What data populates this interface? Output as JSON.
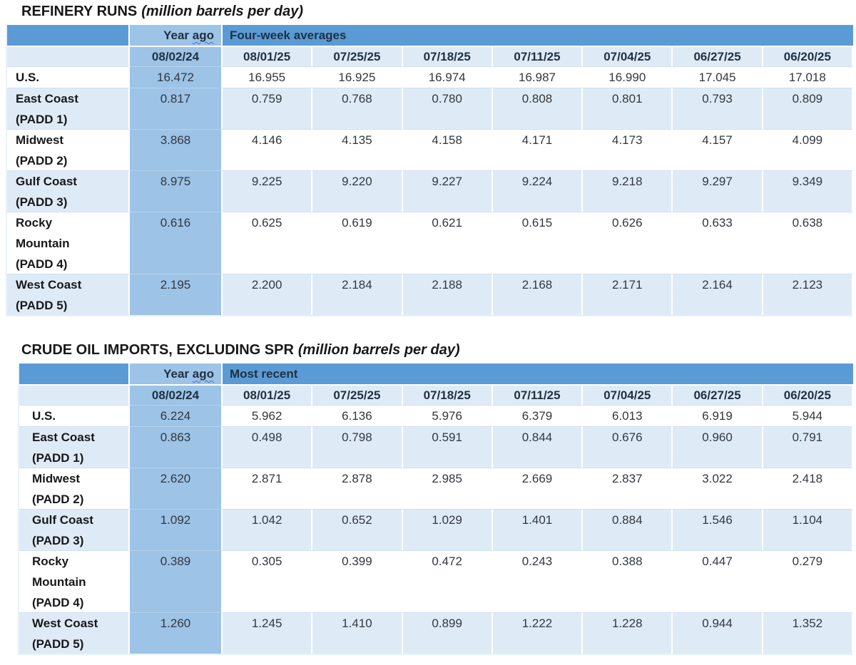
{
  "colors": {
    "header_band": "#5B9BD5",
    "year_ago_column": "#9DC3E6",
    "light_row": "#DEEBF7",
    "white_row": "#FFFFFF",
    "header_text": "#203142",
    "number_text": "#33373F",
    "squiggle_underline": "#4472C4"
  },
  "tables": [
    {
      "title": "REFINERY RUNS",
      "unit_note": "(million barrels per day)",
      "year_ago": {
        "word1": "Year",
        "word2": "ago"
      },
      "group_header": "Four-week averages",
      "year_ago_date": "08/02/24",
      "dates": [
        "08/01/25",
        "07/25/25",
        "07/18/25",
        "07/11/25",
        "07/04/25",
        "06/27/25",
        "06/20/25"
      ],
      "rows": [
        {
          "label_lines": [
            "U.S."
          ],
          "year_ago_value": "16.472",
          "values": [
            "16.955",
            "16.925",
            "16.974",
            "16.987",
            "16.990",
            "17.045",
            "17.018"
          ]
        },
        {
          "label_lines": [
            "East Coast",
            "(PADD 1)"
          ],
          "year_ago_value": "0.817",
          "values": [
            "0.759",
            "0.768",
            "0.780",
            "0.808",
            "0.801",
            "0.793",
            "0.809"
          ]
        },
        {
          "label_lines": [
            "Midwest",
            "(PADD 2)"
          ],
          "year_ago_value": "3.868",
          "values": [
            "4.146",
            "4.135",
            "4.158",
            "4.171",
            "4.173",
            "4.157",
            "4.099"
          ]
        },
        {
          "label_lines": [
            "Gulf Coast",
            "(PADD 3)"
          ],
          "year_ago_value": "8.975",
          "values": [
            "9.225",
            "9.220",
            "9.227",
            "9.224",
            "9.218",
            "9.297",
            "9.349"
          ]
        },
        {
          "label_lines": [
            "Rocky",
            "Mountain",
            "(PADD 4)"
          ],
          "year_ago_value": "0.616",
          "values": [
            "0.625",
            "0.619",
            "0.621",
            "0.615",
            "0.626",
            "0.633",
            "0.638"
          ]
        },
        {
          "label_lines": [
            "West Coast",
            "(PADD 5)"
          ],
          "year_ago_value": "2.195",
          "values": [
            "2.200",
            "2.184",
            "2.188",
            "2.168",
            "2.171",
            "2.164",
            "2.123"
          ]
        }
      ]
    },
    {
      "title": "CRUDE OIL IMPORTS, EXCLUDING SPR",
      "unit_note": "(million barrels per day)",
      "year_ago": {
        "word1": "Year",
        "word2": "ago"
      },
      "group_header": "Most recent",
      "year_ago_date": "08/02/24",
      "dates": [
        "08/01/25",
        "07/25/25",
        "07/18/25",
        "07/11/25",
        "07/04/25",
        "06/27/25",
        "06/20/25"
      ],
      "rows": [
        {
          "label_lines": [
            "U.S."
          ],
          "year_ago_value": "6.224",
          "values": [
            "5.962",
            "6.136",
            "5.976",
            "6.379",
            "6.013",
            "6.919",
            "5.944"
          ]
        },
        {
          "label_lines": [
            "East Coast",
            "(PADD 1)"
          ],
          "year_ago_value": "0.863",
          "values": [
            "0.498",
            "0.798",
            "0.591",
            "0.844",
            "0.676",
            "0.960",
            "0.791"
          ]
        },
        {
          "label_lines": [
            "Midwest",
            "(PADD 2)"
          ],
          "year_ago_value": "2.620",
          "values": [
            "2.871",
            "2.878",
            "2.985",
            "2.669",
            "2.837",
            "3.022",
            "2.418"
          ]
        },
        {
          "label_lines": [
            "Gulf Coast",
            "(PADD 3)"
          ],
          "year_ago_value": "1.092",
          "values": [
            "1.042",
            "0.652",
            "1.029",
            "1.401",
            "0.884",
            "1.546",
            "1.104"
          ]
        },
        {
          "label_lines": [
            "Rocky",
            "Mountain",
            "(PADD 4)"
          ],
          "year_ago_value": "0.389",
          "values": [
            "0.305",
            "0.399",
            "0.472",
            "0.243",
            "0.388",
            "0.447",
            "0.279"
          ]
        },
        {
          "label_lines": [
            "West Coast",
            "(PADD 5)"
          ],
          "year_ago_value": "1.260",
          "values": [
            "1.245",
            "1.410",
            "0.899",
            "1.222",
            "1.228",
            "0.944",
            "1.352"
          ]
        }
      ]
    }
  ]
}
